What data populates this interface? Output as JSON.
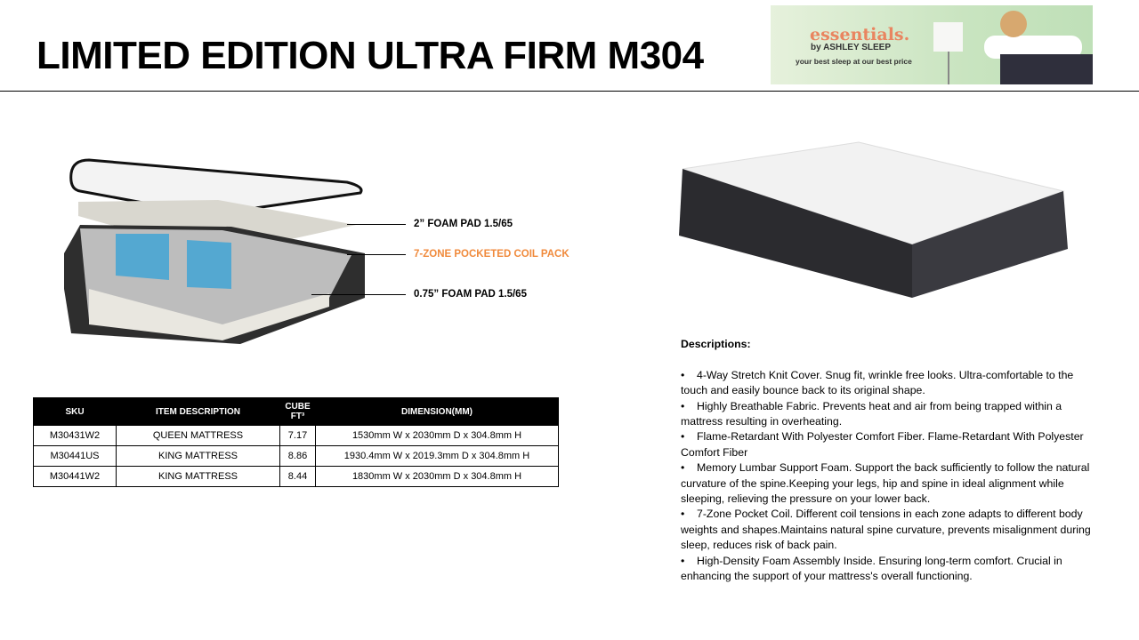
{
  "title": "LIMITED EDITION ULTRA FIRM M304",
  "banner": {
    "brand": "essentials.",
    "byline": "by ASHLEY SLEEP",
    "tagline": "your best sleep at our best price"
  },
  "layers": {
    "callouts": [
      {
        "label": "2” FOAM PAD 1.5/65",
        "color": "#000000"
      },
      {
        "label": "7-ZONE POCKETED COIL PACK",
        "color": "#f08a3c"
      },
      {
        "label": "0.75” FOAM PAD 1.5/65",
        "color": "#000000"
      }
    ]
  },
  "table": {
    "headers": [
      "SKU",
      "ITEM DESCRIPTION",
      "CUBE FT³",
      "DIMENSION(MM)"
    ],
    "rows": [
      [
        "M30431W2",
        "QUEEN MATTRESS",
        "7.17",
        "1530mm W x 2030mm D x 304.8mm H"
      ],
      [
        "M30441US",
        "KING MATTRESS",
        "8.86",
        "1930.4mm W x 2019.3mm D x 304.8mm H"
      ],
      [
        "M30441W2",
        "KING MATTRESS",
        "8.44",
        "1830mm W x 2030mm D x 304.8mm H"
      ]
    ]
  },
  "descriptions": {
    "heading": "Descriptions:",
    "items": [
      "4-Way Stretch Knit Cover. Snug fit, wrinkle free looks. Ultra-comfortable to the touch and easily bounce back to its original shape.",
      "Highly Breathable Fabric. Prevents heat and air from being trapped within a mattress resulting in overheating.",
      "Flame-Retardant With Polyester Comfort Fiber. Flame-Retardant With Polyester Comfort Fiber",
      "Memory Lumbar Support Foam. Support the back sufficiently to follow the natural curvature of the spine.Keeping your legs, hip and spine in ideal alignment while sleeping, relieving the pressure on your lower back.",
      "7-Zone Pocket Coil. Different coil tensions in each zone adapts to different body weights and shapes.Maintains natural spine curvature, prevents misalignment during sleep, reduces risk of back pain.",
      "High-Density Foam Assembly Inside. Ensuring long-term comfort. Crucial in enhancing the support of your mattress's overall functioning."
    ]
  }
}
